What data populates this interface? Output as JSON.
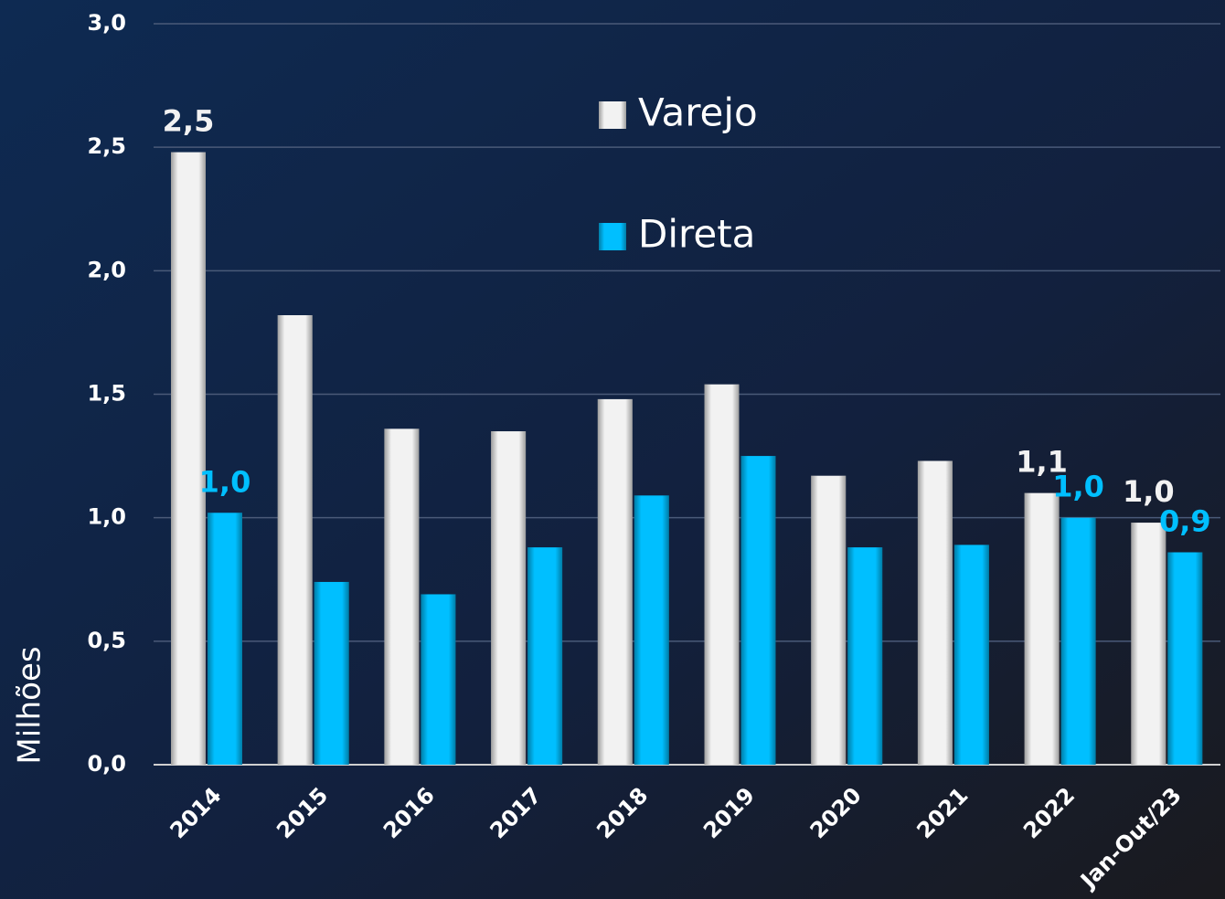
{
  "chart_data": {
    "type": "bar",
    "ylabel": "Milhões",
    "categories": [
      "2014",
      "2015",
      "2016",
      "2017",
      "2018",
      "2019",
      "2020",
      "2021",
      "2022",
      "Jan-Out/23"
    ],
    "series": [
      {
        "name": "Varejo",
        "color": "#f2f2f2",
        "values": [
          2.48,
          1.82,
          1.36,
          1.35,
          1.48,
          1.54,
          1.17,
          1.23,
          1.1,
          0.98
        ],
        "value_labels": [
          "2,5",
          null,
          null,
          null,
          null,
          null,
          null,
          null,
          "1,1",
          "1,0"
        ]
      },
      {
        "name": "Direta",
        "color": "#00bfff",
        "values": [
          1.02,
          0.74,
          0.69,
          0.88,
          1.09,
          1.25,
          0.88,
          0.89,
          1.0,
          0.86
        ],
        "value_labels": [
          "1,0",
          null,
          null,
          null,
          null,
          null,
          null,
          null,
          "1,0",
          "0,9"
        ]
      }
    ],
    "ylim": [
      0,
      3
    ],
    "yticks": [
      {
        "value": 0,
        "label": "0,0"
      },
      {
        "value": 0.5,
        "label": "0,5"
      },
      {
        "value": 1,
        "label": "1,0"
      },
      {
        "value": 1.5,
        "label": "1,5"
      },
      {
        "value": 2,
        "label": "2,0"
      },
      {
        "value": 2.5,
        "label": "2,5"
      },
      {
        "value": 3,
        "label": "3,0"
      }
    ],
    "grid": true
  }
}
